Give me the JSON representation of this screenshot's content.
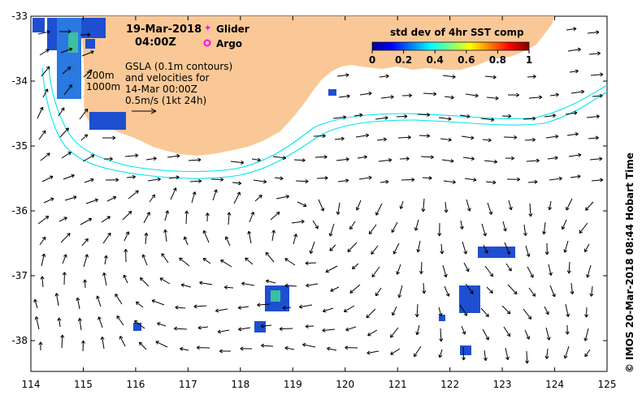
{
  "header": {
    "date": "19-Mar-2018",
    "time": "04:00Z"
  },
  "legend": {
    "glider_label": "Glider",
    "argo_label": "Argo",
    "glider_color": "#ff00ff",
    "argo_color": "#ff00ff"
  },
  "colorbar": {
    "title": "std dev of 4hr SST comp",
    "ticks": [
      "0",
      "0.2",
      "0.4",
      "0.6",
      "0.8",
      "1"
    ]
  },
  "annotations": {
    "gsla_line1": "GSLA (0.1m contours)",
    "gsla_line2": "and velocities for",
    "gsla_line3": "14-Mar 00:00Z",
    "scale_label": "0.5m/s (1kt 24h)",
    "depth_200": "200m",
    "depth_1000": "1000m"
  },
  "axes": {
    "x_ticks": [
      "114",
      "115",
      "116",
      "117",
      "118",
      "119",
      "120",
      "121",
      "122",
      "123",
      "124",
      "125"
    ],
    "y_ticks": [
      "-33",
      "-34",
      "-35",
      "-36",
      "-37",
      "-38"
    ]
  },
  "credit": "© IMOS 20-Mar-2018 08:44 Hobart Time",
  "colors": {
    "land": "#fac896",
    "isobath": "#00e5ee",
    "arrow": "#000000",
    "sst_patch": "#1e4fd0"
  }
}
